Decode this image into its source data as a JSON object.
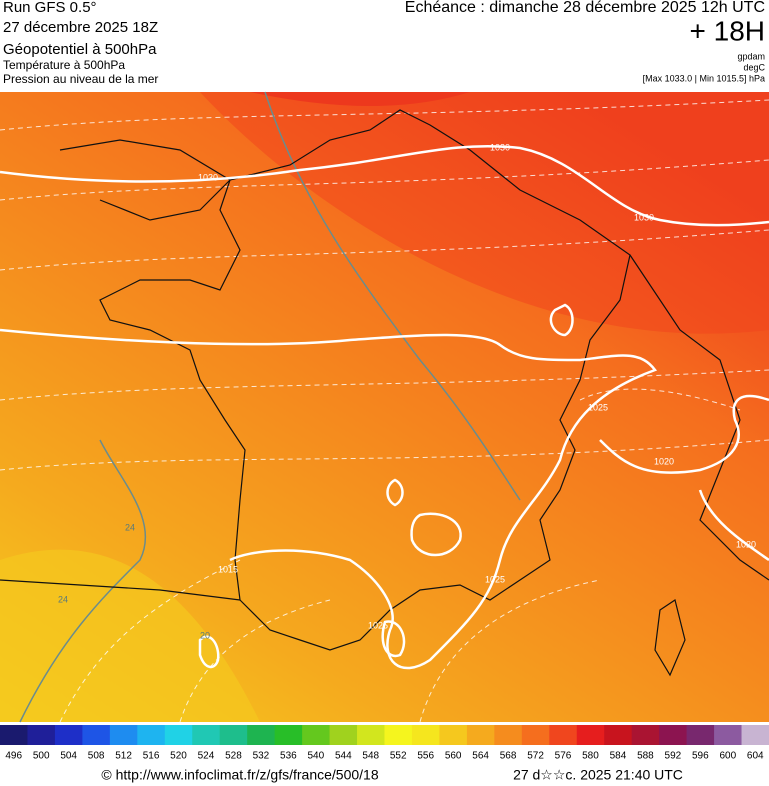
{
  "header": {
    "run": "Run GFS 0.5°",
    "run_date": "27 décembre 2025 18Z",
    "field1": "Géopotentiel à 500hPa",
    "field2": "Température à 500hPa",
    "field3": "Pression au niveau de la mer",
    "valid": "Echéance : dimanche 28 décembre 2025 12h UTC",
    "lead": "+ 18H",
    "unit1": "gpdam",
    "unit2": "degC",
    "range": "[Max 1033.0 | Min 1015.5] hPa"
  },
  "map": {
    "isobar_labels": [
      "1030",
      "1030",
      "1030",
      "1025",
      "1020",
      "1020",
      "1015",
      "1025",
      "1025"
    ],
    "isotherm_labels": [
      "24",
      "24",
      "20"
    ]
  },
  "colorbar": {
    "labels": [
      496,
      500,
      504,
      508,
      512,
      516,
      520,
      524,
      528,
      532,
      536,
      540,
      544,
      548,
      552,
      556,
      560,
      564,
      568,
      572,
      576,
      580,
      584,
      588,
      592,
      596,
      600,
      604
    ],
    "colors": [
      "#1a1a6e",
      "#1f1f99",
      "#1e2fc8",
      "#1e55e6",
      "#1e8cf0",
      "#1eb4f0",
      "#20d2e6",
      "#20c8b4",
      "#1ebe8c",
      "#1eb450",
      "#28be28",
      "#64c81e",
      "#a0d21e",
      "#d2e61e",
      "#f5f51e",
      "#f5e61e",
      "#f5c81e",
      "#f5aa1e",
      "#f58c1e",
      "#f56e1e",
      "#f0461e",
      "#e61e1e",
      "#c8141e",
      "#aa1432",
      "#8c1450",
      "#78286e",
      "#8c5aa0",
      "#c8b4d2"
    ]
  },
  "footer": {
    "url": "© http://www.infoclimat.fr/z/gfs/france/500/18",
    "stamp": "27 d☆☆c. 2025 21:40 UTC"
  }
}
